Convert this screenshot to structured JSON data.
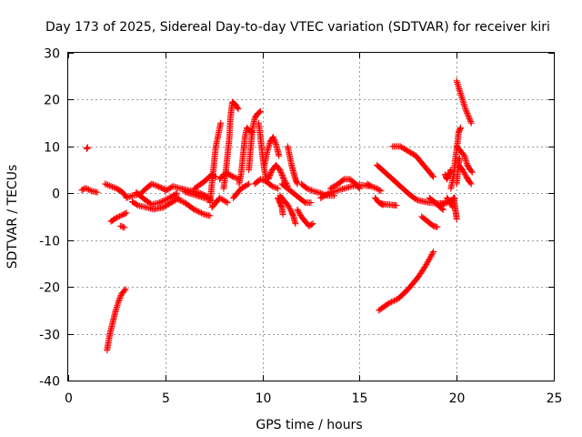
{
  "chart_data": {
    "type": "scatter",
    "title": "Day 173 of 2025, Sidereal Day-to-day VTEC variation (SDTVAR) for receiver kiri",
    "xlabel": "GPS time / hours",
    "ylabel": "SDTVAR / TECUs",
    "xlim": [
      0,
      25
    ],
    "ylim": [
      -40,
      30
    ],
    "xticks": [
      0,
      5,
      10,
      15,
      20,
      25
    ],
    "yticks": [
      -40,
      -30,
      -20,
      -10,
      0,
      10,
      20,
      30
    ],
    "grid": true,
    "marker": "plus",
    "color": "#ff0000",
    "tracks": [
      [
        [
          0.7,
          0.7
        ],
        [
          0.9,
          1.1
        ],
        [
          1.2,
          0.5
        ],
        [
          1.5,
          0.2
        ]
      ],
      [
        [
          0.95,
          9.5
        ],
        [
          1.0,
          9.8
        ]
      ],
      [
        [
          1.9,
          2.0
        ],
        [
          2.2,
          1.5
        ],
        [
          2.5,
          1.0
        ],
        [
          2.8,
          0.2
        ],
        [
          3.0,
          -0.8
        ]
      ],
      [
        [
          2.2,
          -6.0
        ],
        [
          2.5,
          -5.2
        ],
        [
          2.8,
          -4.6
        ],
        [
          3.0,
          -4.2
        ]
      ],
      [
        [
          2.7,
          -7.0
        ],
        [
          2.9,
          -7.3
        ]
      ],
      [
        [
          2.0,
          -33.5
        ],
        [
          2.15,
          -30.0
        ],
        [
          2.3,
          -27.5
        ],
        [
          2.45,
          -25.0
        ],
        [
          2.6,
          -23.0
        ],
        [
          2.75,
          -21.5
        ],
        [
          2.95,
          -20.5
        ]
      ],
      [
        [
          3.0,
          -1.0
        ],
        [
          3.3,
          -0.5
        ],
        [
          3.7,
          -0.2
        ],
        [
          4.0,
          1.0
        ],
        [
          4.3,
          2.0
        ],
        [
          4.6,
          1.5
        ],
        [
          5.0,
          0.8
        ]
      ],
      [
        [
          3.3,
          -1.8
        ],
        [
          3.6,
          -2.6
        ],
        [
          4.0,
          -3.0
        ],
        [
          4.4,
          -3.4
        ],
        [
          4.9,
          -3.0
        ],
        [
          5.3,
          -2.0
        ],
        [
          5.7,
          -1.0
        ]
      ],
      [
        [
          3.5,
          0.2
        ],
        [
          3.9,
          -1.2
        ],
        [
          4.3,
          -2.4
        ],
        [
          4.7,
          -2.0
        ],
        [
          5.2,
          -1.0
        ],
        [
          5.6,
          0.0
        ]
      ],
      [
        [
          5.0,
          0.5
        ],
        [
          5.4,
          1.5
        ],
        [
          5.8,
          1.0
        ],
        [
          6.3,
          0.5
        ],
        [
          6.8,
          0.0
        ],
        [
          7.2,
          -0.8
        ]
      ],
      [
        [
          5.5,
          -1.0
        ],
        [
          6.0,
          -2.0
        ],
        [
          6.5,
          -3.5
        ],
        [
          7.0,
          -4.5
        ],
        [
          7.3,
          -4.8
        ]
      ],
      [
        [
          6.0,
          0.3
        ],
        [
          6.5,
          -0.3
        ],
        [
          7.0,
          -1.0
        ],
        [
          7.4,
          -1.5
        ]
      ],
      [
        [
          6.5,
          1.0
        ],
        [
          7.0,
          2.5
        ],
        [
          7.4,
          4.0
        ],
        [
          7.6,
          3.5
        ]
      ],
      [
        [
          7.3,
          -2.0
        ],
        [
          7.4,
          2.0
        ],
        [
          7.5,
          6.0
        ],
        [
          7.6,
          10.0
        ],
        [
          7.75,
          13.0
        ],
        [
          7.85,
          15.0
        ]
      ],
      [
        [
          7.4,
          -3.0
        ],
        [
          7.6,
          -2.0
        ],
        [
          7.8,
          -1.0
        ],
        [
          8.0,
          -1.5
        ],
        [
          8.2,
          -2.0
        ]
      ],
      [
        [
          8.0,
          1.0
        ],
        [
          8.1,
          4.0
        ],
        [
          8.2,
          8.0
        ],
        [
          8.3,
          12.0
        ],
        [
          8.35,
          16.0
        ],
        [
          8.45,
          19.5
        ],
        [
          8.6,
          19.0
        ],
        [
          8.75,
          18.0
        ]
      ],
      [
        [
          7.8,
          3.0
        ],
        [
          8.0,
          4.0
        ],
        [
          8.2,
          4.2
        ],
        [
          8.5,
          3.5
        ],
        [
          8.8,
          3.0
        ]
      ],
      [
        [
          8.8,
          2.0
        ],
        [
          8.9,
          4.0
        ],
        [
          9.0,
          8.0
        ],
        [
          9.1,
          12.0
        ],
        [
          9.2,
          14.0
        ],
        [
          9.3,
          13.5
        ],
        [
          9.5,
          13.0
        ]
      ],
      [
        [
          8.5,
          -1.0
        ],
        [
          8.7,
          0.0
        ],
        [
          8.9,
          1.0
        ],
        [
          9.1,
          1.5
        ],
        [
          9.3,
          2.0
        ]
      ],
      [
        [
          9.3,
          5.0
        ],
        [
          9.4,
          10.0
        ],
        [
          9.5,
          14.0
        ],
        [
          9.6,
          16.0
        ],
        [
          9.75,
          17.0
        ],
        [
          9.9,
          17.5
        ]
      ],
      [
        [
          9.8,
          15.0
        ],
        [
          9.9,
          12.0
        ],
        [
          10.0,
          8.0
        ],
        [
          10.1,
          5.0
        ],
        [
          10.2,
          3.0
        ]
      ],
      [
        [
          9.6,
          2.0
        ],
        [
          9.9,
          3.0
        ],
        [
          10.2,
          2.5
        ],
        [
          10.5,
          1.5
        ],
        [
          10.8,
          1.0
        ]
      ],
      [
        [
          10.1,
          6.0
        ],
        [
          10.25,
          9.0
        ],
        [
          10.4,
          11.0
        ],
        [
          10.55,
          12.0
        ],
        [
          10.7,
          10.5
        ],
        [
          10.85,
          8.0
        ]
      ],
      [
        [
          10.3,
          3.0
        ],
        [
          10.5,
          5.0
        ],
        [
          10.7,
          6.0
        ],
        [
          10.9,
          5.0
        ],
        [
          11.1,
          3.0
        ],
        [
          11.3,
          1.5
        ]
      ],
      [
        [
          10.8,
          -1.0
        ],
        [
          10.9,
          -2.0
        ],
        [
          11.0,
          -3.0
        ],
        [
          11.05,
          -4.5
        ]
      ],
      [
        [
          10.9,
          -0.5
        ],
        [
          11.1,
          -1.5
        ],
        [
          11.3,
          -2.5
        ],
        [
          11.5,
          -4.0
        ],
        [
          11.6,
          -5.0
        ],
        [
          11.7,
          -6.5
        ]
      ],
      [
        [
          11.3,
          10.0
        ],
        [
          11.4,
          8.0
        ],
        [
          11.5,
          6.0
        ],
        [
          11.6,
          4.5
        ],
        [
          11.7,
          3.0
        ],
        [
          11.8,
          2.0
        ]
      ],
      [
        [
          11.0,
          2.0
        ],
        [
          11.3,
          1.0
        ],
        [
          11.6,
          0.0
        ],
        [
          11.9,
          -1.0
        ],
        [
          12.2,
          -2.0
        ],
        [
          12.5,
          -2.0
        ]
      ],
      [
        [
          11.8,
          -3.5
        ],
        [
          12.0,
          -5.0
        ],
        [
          12.2,
          -6.0
        ],
        [
          12.4,
          -7.0
        ],
        [
          12.6,
          -6.5
        ]
      ],
      [
        [
          12.0,
          2.0
        ],
        [
          12.3,
          1.0
        ],
        [
          12.6,
          0.5
        ],
        [
          13.0,
          0.0
        ],
        [
          13.3,
          -0.5
        ],
        [
          13.7,
          -0.5
        ]
      ],
      [
        [
          13.5,
          1.0
        ],
        [
          13.9,
          2.0
        ],
        [
          14.2,
          3.0
        ],
        [
          14.5,
          3.0
        ],
        [
          14.8,
          2.0
        ],
        [
          15.0,
          1.0
        ]
      ],
      [
        [
          13.0,
          -1.0
        ],
        [
          13.4,
          0.0
        ],
        [
          13.8,
          0.5
        ],
        [
          14.2,
          1.0
        ],
        [
          14.6,
          1.5
        ],
        [
          15.0,
          1.8
        ],
        [
          15.5,
          1.5
        ]
      ],
      [
        [
          15.4,
          2.0
        ],
        [
          15.6,
          1.5
        ],
        [
          15.9,
          1.0
        ],
        [
          16.1,
          0.5
        ]
      ],
      [
        [
          15.8,
          -1.0
        ],
        [
          16.0,
          -2.0
        ],
        [
          16.2,
          -2.5
        ]
      ],
      [
        [
          16.1,
          -2.2
        ],
        [
          16.4,
          -2.4
        ],
        [
          16.7,
          -2.5
        ],
        [
          16.9,
          -2.6
        ]
      ],
      [
        [
          15.9,
          6.0
        ],
        [
          16.3,
          4.5
        ],
        [
          16.7,
          3.0
        ],
        [
          17.1,
          1.5
        ],
        [
          17.5,
          0.0
        ],
        [
          17.8,
          -1.0
        ],
        [
          18.0,
          -1.5
        ]
      ],
      [
        [
          16.7,
          10.0
        ],
        [
          17.1,
          10.0
        ],
        [
          17.5,
          9.0
        ],
        [
          17.9,
          8.0
        ],
        [
          18.2,
          6.5
        ],
        [
          18.6,
          4.5
        ],
        [
          18.8,
          3.5
        ]
      ],
      [
        [
          18.0,
          -1.5
        ],
        [
          18.6,
          -2.0
        ],
        [
          19.1,
          -2.2
        ],
        [
          19.4,
          -2.0
        ]
      ],
      [
        [
          18.6,
          -1.0
        ],
        [
          18.9,
          -2.0
        ],
        [
          19.1,
          -2.8
        ],
        [
          19.3,
          -3.5
        ]
      ],
      [
        [
          19.2,
          -2.5
        ],
        [
          19.5,
          -2.0
        ],
        [
          19.7,
          -1.5
        ],
        [
          19.9,
          -1.0
        ]
      ],
      [
        [
          18.2,
          -5.0
        ],
        [
          18.5,
          -6.0
        ],
        [
          18.8,
          -7.0
        ],
        [
          19.0,
          -7.2
        ]
      ],
      [
        [
          19.4,
          4.0
        ],
        [
          19.5,
          3.0
        ],
        [
          19.6,
          4.0
        ],
        [
          19.7,
          5.0
        ]
      ],
      [
        [
          19.5,
          -1.0
        ],
        [
          19.6,
          -1.5
        ],
        [
          19.7,
          -2.2
        ],
        [
          19.8,
          -3.0
        ]
      ],
      [
        [
          16.0,
          -25.0
        ],
        [
          16.5,
          -23.5
        ],
        [
          17.0,
          -22.5
        ],
        [
          17.5,
          -20.5
        ],
        [
          18.0,
          -18.0
        ],
        [
          18.4,
          -15.5
        ],
        [
          18.8,
          -12.5
        ]
      ],
      [
        [
          19.85,
          -1.0
        ],
        [
          19.9,
          -2.5
        ],
        [
          19.95,
          -4.0
        ],
        [
          20.0,
          -5.5
        ]
      ],
      [
        [
          19.7,
          1.0
        ],
        [
          19.85,
          4.0
        ],
        [
          19.95,
          8.0
        ],
        [
          20.05,
          11.0
        ],
        [
          20.1,
          13.0
        ],
        [
          20.2,
          14.0
        ]
      ],
      [
        [
          20.0,
          10.0
        ],
        [
          20.2,
          9.0
        ],
        [
          20.4,
          8.0
        ],
        [
          20.55,
          6.0
        ],
        [
          20.7,
          5.0
        ],
        [
          20.8,
          4.5
        ]
      ],
      [
        [
          20.0,
          24.0
        ],
        [
          20.15,
          22.0
        ],
        [
          20.3,
          20.0
        ],
        [
          20.45,
          18.0
        ],
        [
          20.6,
          16.5
        ],
        [
          20.75,
          15.0
        ]
      ],
      [
        [
          20.1,
          6.0
        ],
        [
          20.3,
          5.0
        ],
        [
          20.5,
          3.5
        ],
        [
          20.65,
          2.5
        ],
        [
          20.75,
          2.0
        ]
      ],
      [
        [
          20.0,
          2.0
        ],
        [
          20.05,
          4.0
        ],
        [
          20.1,
          6.0
        ],
        [
          20.15,
          7.5
        ]
      ]
    ]
  }
}
